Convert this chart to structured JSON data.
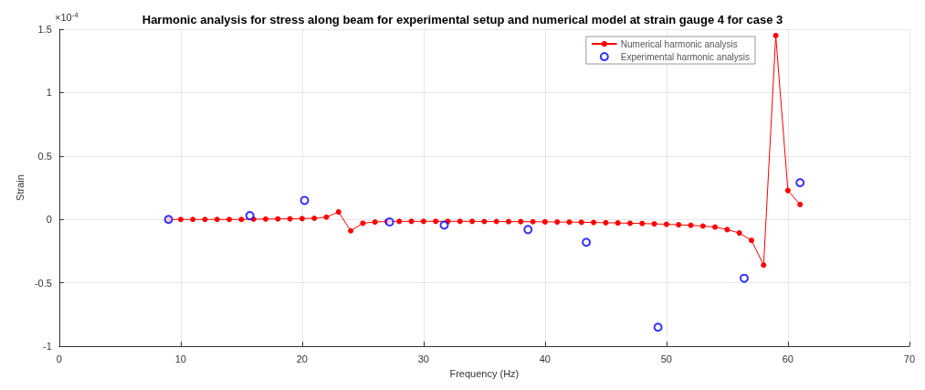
{
  "chart_data": {
    "type": "line",
    "title": "Harmonic analysis for stress along beam for experimental setup and numerical model at strain gauge 4 for case 3",
    "xlabel": "Frequency (Hz)",
    "ylabel": "Strain",
    "annotations": [
      "×10$^{-4}$"
    ],
    "xlim": [
      0,
      70
    ],
    "xticks": [
      0,
      10,
      20,
      30,
      40,
      50,
      60,
      70
    ],
    "ylim": [
      -1,
      1.5
    ],
    "yticks": [
      -1,
      -0.5,
      0,
      0.5,
      1,
      1.5
    ],
    "grid": true,
    "legend": "top right",
    "series": [
      {
        "name": "Numerical harmonic analysis",
        "color": "#ff0000",
        "marker": "circle",
        "line_style": "solid",
        "x": [
          9,
          10,
          11,
          12,
          13,
          14,
          15,
          16,
          17,
          18,
          19,
          20,
          21,
          22,
          23,
          24,
          25,
          26,
          27,
          28,
          29,
          30,
          31,
          32,
          33,
          34,
          35,
          36,
          37,
          38,
          39,
          40,
          41,
          42,
          43,
          44,
          45,
          46,
          47,
          48,
          49,
          50,
          51,
          52,
          53,
          54,
          55,
          56,
          57,
          58,
          59,
          60,
          61
        ],
        "values": [
          0,
          0,
          0,
          0,
          0,
          0,
          0,
          0.002,
          0.003,
          0.004,
          0.005,
          0.007,
          0.009,
          0.018,
          0.059,
          -0.09,
          -0.03,
          -0.02,
          -0.016,
          -0.015,
          -0.015,
          -0.015,
          -0.015,
          -0.015,
          -0.015,
          -0.015,
          -0.016,
          -0.016,
          -0.017,
          -0.017,
          -0.018,
          -0.019,
          -0.02,
          -0.021,
          -0.022,
          -0.024,
          -0.026,
          -0.028,
          -0.03,
          -0.032,
          -0.035,
          -0.038,
          -0.042,
          -0.046,
          -0.052,
          -0.06,
          -0.08,
          -0.107,
          -0.165,
          -0.36,
          1.45,
          0.228,
          0.118
        ]
      },
      {
        "name": "Experimental harmonic analysis",
        "type": "scatter",
        "color": "#0000ff",
        "marker": "circle",
        "x": [
          9,
          15.7,
          20.2,
          27.2,
          31.7,
          38.6,
          43.4,
          49.3,
          56.4,
          61
        ],
        "values": [
          0,
          0.03,
          0.15,
          -0.02,
          -0.045,
          -0.08,
          -0.18,
          -0.85,
          -0.464,
          0.29
        ]
      }
    ]
  }
}
